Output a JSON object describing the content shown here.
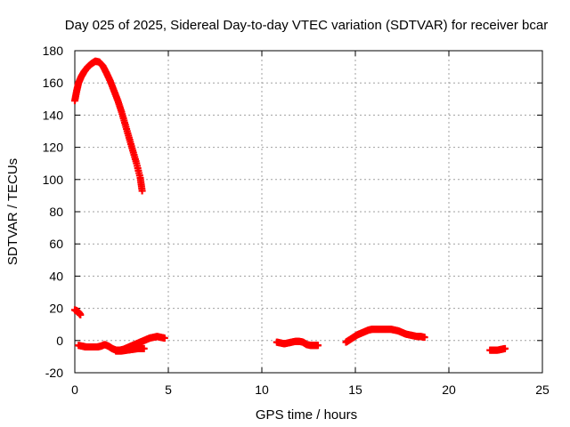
{
  "chart_data": {
    "type": "scatter",
    "title": "Day 025 of 2025, Sidereal Day-to-day VTEC variation (SDTVAR) for receiver bcar",
    "xlabel": "GPS time / hours",
    "ylabel": "SDTVAR / TECUs",
    "xlim": [
      0,
      25
    ],
    "ylim": [
      -20,
      180
    ],
    "xticks": [
      0,
      5,
      10,
      15,
      20,
      25
    ],
    "yticks": [
      -20,
      0,
      20,
      40,
      60,
      80,
      100,
      120,
      140,
      160,
      180
    ],
    "grid": true,
    "marker": "plus",
    "color": "#ff0000",
    "series": [
      {
        "name": "high-arc",
        "x": [
          0.0,
          0.1,
          0.2,
          0.35,
          0.5,
          0.7,
          0.9,
          1.1,
          1.3,
          1.5,
          1.7,
          1.9,
          2.1,
          2.3,
          2.5,
          2.7,
          2.9,
          3.1,
          3.3,
          3.5,
          3.6
        ],
        "y": [
          149,
          155,
          160,
          164,
          167,
          170,
          172,
          173.5,
          173,
          170.5,
          166,
          161,
          155,
          149,
          142,
          134,
          126,
          118,
          110,
          101,
          93
        ]
      },
      {
        "name": "start-drop",
        "x": [
          0.0,
          0.1,
          0.2,
          0.3
        ],
        "y": [
          19,
          18.5,
          17.5,
          16
        ]
      },
      {
        "name": "low-0-5",
        "x": [
          0.2,
          0.4,
          0.6,
          0.8,
          1.0,
          1.2,
          1.4,
          1.6,
          1.8,
          2.0,
          2.2,
          2.4,
          2.6,
          2.8,
          3.0,
          3.2,
          3.4,
          3.6,
          3.8,
          4.0,
          4.2,
          4.4,
          4.6,
          4.8
        ],
        "y": [
          -3,
          -3.5,
          -4,
          -4,
          -4,
          -4,
          -3.5,
          -2.5,
          -3.5,
          -5,
          -6,
          -6,
          -5.5,
          -4.5,
          -3.5,
          -2.5,
          -1.5,
          -0.5,
          0.5,
          1.5,
          2,
          2.5,
          2,
          1.5
        ]
      },
      {
        "name": "low-2-4-lower",
        "x": [
          2.2,
          2.5,
          2.8,
          3.1,
          3.4,
          3.7
        ],
        "y": [
          -6.5,
          -6.5,
          -6,
          -5.5,
          -5,
          -5
        ]
      },
      {
        "name": "low-10-13",
        "x": [
          10.8,
          11.0,
          11.2,
          11.4,
          11.6,
          11.8,
          12.0,
          12.2,
          12.4,
          12.6,
          12.8,
          13.0
        ],
        "y": [
          -1,
          -1.5,
          -2,
          -1.5,
          -1,
          -0.5,
          -0.5,
          -1,
          -2.5,
          -3,
          -3,
          -3
        ]
      },
      {
        "name": "low-14-19",
        "x": [
          14.5,
          14.7,
          14.9,
          15.1,
          15.3,
          15.5,
          15.7,
          15.9,
          16.1,
          16.3,
          16.5,
          16.7,
          16.9,
          17.1,
          17.3,
          17.5,
          17.7,
          17.9,
          18.1,
          18.3,
          18.5,
          18.7
        ],
        "y": [
          -1,
          0.5,
          2,
          3.5,
          4.5,
          5.5,
          6.5,
          7,
          7,
          7,
          7,
          7,
          7,
          6.5,
          6,
          5,
          4,
          3.5,
          3,
          2.5,
          2.5,
          2
        ]
      },
      {
        "name": "low-22-23",
        "x": [
          22.2,
          22.4,
          22.6,
          22.8,
          23.0
        ],
        "y": [
          -6,
          -6,
          -6,
          -5.5,
          -5
        ]
      }
    ]
  }
}
